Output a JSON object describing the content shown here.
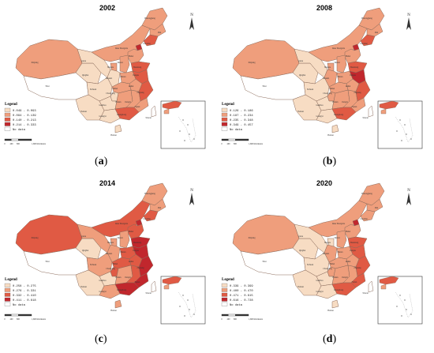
{
  "colors": {
    "class1": "#f7dcc3",
    "class2": "#ef9e7c",
    "class3": "#e05a44",
    "class4": "#c1272d",
    "nodata": "#ffffff",
    "stroke": "#8a6a5a"
  },
  "panels": [
    {
      "year": "2002",
      "caption_letter": "a",
      "legend_title": "Legend",
      "legend": [
        "0.049 - 0.093",
        "0.094 - 0.139",
        "0.140 - 0.213",
        "0.214 - 0.333",
        "No data"
      ],
      "scale_labels": [
        "0",
        "400",
        "800",
        "1,600 Kilometers"
      ],
      "north_label": "N",
      "place_labels": {
        "heilongjiang": "Heilongjiang",
        "jilin": "Jilin",
        "xinjiang": "Xinjiang",
        "tibet": "Tibet",
        "gansu": "gansu",
        "inner_mongolia": "Inner Mongolia",
        "qinghai": "Qinghai",
        "sichuan": "Sichuan",
        "chongqing": "Chongqing",
        "yunnan": "Yunnan",
        "guangxi": "Guangxi",
        "guangdong": "Guangdong",
        "hubei": "Hubei",
        "hunan": "Hunan",
        "jiangxi": "Jiangxi",
        "anhui": "Anhui",
        "henan": "Henan",
        "hebei": "Hebei",
        "shandong": "Shandong",
        "zhejiang": "Zhejiang",
        "jiangsu": "Jiangsu",
        "fujian": "Fujian",
        "taiwan": "Taiwan",
        "hainan": "Hainan",
        "guizhou": "Guizhou",
        "shaanxi": "Shaanxi",
        "shanxi": "Shanxi",
        "ningxia": "Ningxia",
        "liaoning": "Liaoning"
      },
      "regions": {
        "xinjiang": 2,
        "tibet": 0,
        "qinghai": 1,
        "gansu": 1,
        "inner_mongolia": 2,
        "heilongjiang": 2,
        "jilin": 2,
        "liaoning": 3,
        "beijing": 4,
        "hebei": 2,
        "shanxi": 2,
        "shaanxi": 1,
        "ningxia": 2,
        "henan": 2,
        "shandong": 3,
        "jiangsu": 3,
        "anhui": 2,
        "hubei": 2,
        "sichuan": 1,
        "chongqing": 1,
        "guizhou": 1,
        "yunnan": 1,
        "hunan": 2,
        "jiangxi": 2,
        "zhejiang": 3,
        "fujian": 2,
        "guangxi": 1,
        "guangdong": 3,
        "hainan": 1,
        "taiwan": 0,
        "inset": 3
      }
    },
    {
      "year": "2008",
      "caption_letter": "b",
      "legend_title": "Legend",
      "legend": [
        "0.126 - 0.186",
        "0.187 - 0.234",
        "0.235 - 0.348",
        "0.349 - 0.457",
        "No data"
      ],
      "scale_labels": [
        "0",
        "400",
        "800",
        "1,600 Kilometers"
      ],
      "north_label": "N",
      "place_labels": {
        "heilongjiang": "Heilongjiang",
        "jilin": "Jilin",
        "xinjiang": "Xinjiang",
        "tibet": "Tibet",
        "gansu": "gansu",
        "inner_mongolia": "Inner Mongolia",
        "qinghai": "Qinghai",
        "sichuan": "Sichuan",
        "chongqing": "Chongqing",
        "yunnan": "Yunnan",
        "guangxi": "Guangxi",
        "guangdong": "Guangdong",
        "hubei": "Hubei",
        "hunan": "Hunan",
        "jiangxi": "Jiangxi",
        "anhui": "Anhui",
        "henan": "Henan",
        "hebei": "Hebei",
        "shandong": "Shandong",
        "zhejiang": "Zhejiang",
        "jiangsu": "Jiangsu",
        "fujian": "Fujian",
        "taiwan": "Taiwan",
        "hainan": "Hainan",
        "guizhou": "Guizhou",
        "shaanxi": "Shaanxi",
        "shanxi": "Shanxi",
        "ningxia": "Ningxia",
        "liaoning": "Liaoning"
      },
      "regions": {
        "xinjiang": 2,
        "tibet": 0,
        "qinghai": 1,
        "gansu": 1,
        "inner_mongolia": 2,
        "heilongjiang": 2,
        "jilin": 2,
        "liaoning": 3,
        "beijing": 4,
        "hebei": 2,
        "shanxi": 2,
        "shaanxi": 2,
        "ningxia": 2,
        "henan": 2,
        "shandong": 3,
        "jiangsu": 4,
        "anhui": 2,
        "hubei": 2,
        "sichuan": 1,
        "chongqing": 2,
        "guizhou": 1,
        "yunnan": 1,
        "hunan": 2,
        "jiangxi": 2,
        "zhejiang": 3,
        "fujian": 2,
        "guangxi": 1,
        "guangdong": 3,
        "hainan": 1,
        "taiwan": 0,
        "inset": 3
      }
    },
    {
      "year": "2014",
      "caption_letter": "c",
      "legend_title": "Legend",
      "legend": [
        "0.258 - 0.275",
        "0.276 - 0.331",
        "0.332 - 0.410",
        "0.411 - 0.618",
        "No data"
      ],
      "scale_labels": [
        "0",
        "400",
        "800",
        "1,600 Kilometers"
      ],
      "north_label": "N",
      "place_labels": {
        "heilongjiang": "Heilongjiang",
        "jilin": "Jilin",
        "xinjiang": "Xinjiang",
        "tibet": "Tibet",
        "gansu": "gansu",
        "inner_mongolia": "Inner Mongolia",
        "qinghai": "Qinghai",
        "sichuan": "Sichuan",
        "chongqing": "Chongqing",
        "yunnan": "Yunnan",
        "guangxi": "Guangxi",
        "guangdong": "Guangdong",
        "hubei": "Hubei",
        "hunan": "Hunan",
        "jiangxi": "Jiangxi",
        "anhui": "Anhui",
        "henan": "Henan",
        "hebei": "Hebei",
        "shandong": "Shandong",
        "zhejiang": "Zhejiang",
        "jiangsu": "Jiangsu",
        "fujian": "Fujian",
        "taiwan": "Taiwan",
        "hainan": "Hainan",
        "guizhou": "Guizhou",
        "shaanxi": "Shaanxi",
        "shanxi": "Shanxi",
        "ningxia": "Ningxia",
        "liaoning": "Liaoning"
      },
      "regions": {
        "xinjiang": 3,
        "tibet": 0,
        "qinghai": 1,
        "gansu": 2,
        "inner_mongolia": 3,
        "heilongjiang": 2,
        "jilin": 2,
        "liaoning": 3,
        "beijing": 4,
        "hebei": 3,
        "shanxi": 2,
        "shaanxi": 2,
        "ningxia": 2,
        "henan": 3,
        "shandong": 4,
        "jiangsu": 4,
        "anhui": 3,
        "hubei": 3,
        "sichuan": 2,
        "chongqing": 3,
        "guizhou": 1,
        "yunnan": 1,
        "hunan": 2,
        "jiangxi": 3,
        "zhejiang": 4,
        "fujian": 4,
        "guangxi": 2,
        "guangdong": 4,
        "hainan": 2,
        "taiwan": 0,
        "inset": 3
      }
    },
    {
      "year": "2020",
      "caption_letter": "d",
      "legend_title": "Legend",
      "legend": [
        "0.339 - 0.399",
        "0.400 - 0.470",
        "0.471 - 0.615",
        "0.616 - 0.728",
        "No data"
      ],
      "scale_labels": [
        "0",
        "400",
        "800",
        "1,600 Kilometers"
      ],
      "north_label": "N",
      "place_labels": {
        "heilongjiang": "Heilongjiang",
        "jilin": "Jilin",
        "xinjiang": "Xinjiang",
        "tibet": "Tibet",
        "gansu": "gansu",
        "inner_mongolia": "Inner Mongolia",
        "qinghai": "Qinghai",
        "sichuan": "Sichuan",
        "chongqing": "Chongqing",
        "yunnan": "Yunnan",
        "guangxi": "Guangxi",
        "guangdong": "Guangdong",
        "hubei": "Hubei",
        "hunan": "Hunan",
        "jiangxi": "Jiangxi",
        "anhui": "Anhui",
        "henan": "Henan",
        "hebei": "Hebei",
        "shandong": "Shandong",
        "zhejiang": "Zhejiang",
        "jiangsu": "Jiangsu",
        "fujian": "Fujian",
        "taiwan": "Taiwan",
        "hainan": "Hainan",
        "guizhou": "Guizhou",
        "shaanxi": "Shaanxi",
        "shanxi": "Shanxi",
        "ningxia": "Ningxia",
        "liaoning": "Liaoning"
      },
      "regions": {
        "xinjiang": 2,
        "tibet": 0,
        "qinghai": 1,
        "gansu": 1,
        "inner_mongolia": 2,
        "heilongjiang": 2,
        "jilin": 2,
        "liaoning": 2,
        "beijing": 4,
        "hebei": 2,
        "shanxi": 2,
        "shaanxi": 2,
        "ningxia": 1,
        "henan": 2,
        "shandong": 3,
        "jiangsu": 3,
        "anhui": 2,
        "hubei": 2,
        "sichuan": 1,
        "chongqing": 2,
        "guizhou": 1,
        "yunnan": 1,
        "hunan": 2,
        "jiangxi": 2,
        "zhejiang": 3,
        "fujian": 3,
        "guangxi": 1,
        "guangdong": 3,
        "hainan": 1,
        "taiwan": 0,
        "inset": 3
      }
    }
  ]
}
